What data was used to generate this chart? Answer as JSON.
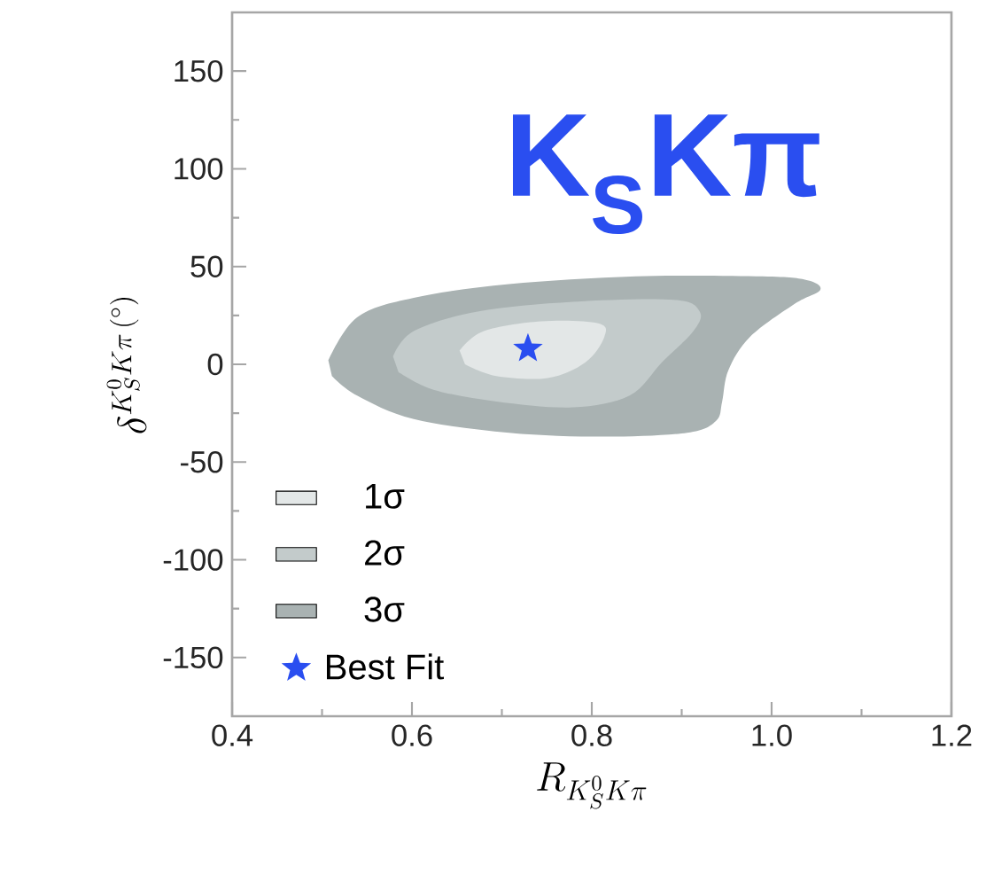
{
  "chart_data": {
    "type": "area",
    "title": "K$_{S}$Kπ",
    "xlabel": "R_{K^{0}_{S}K\\pi}",
    "ylabel": "\\delta^{K^{0}_{S}K\\pi\\,(^{\\circ})}",
    "xlim": [
      0.4,
      1.2
    ],
    "ylim": [
      -180,
      180
    ],
    "xticks": [
      0.4,
      0.6,
      0.8,
      {
        "value": 1.0,
        "label": "1.0"
      },
      1.2
    ],
    "yticks": [
      -150,
      -100,
      -50,
      0,
      50,
      100,
      150
    ],
    "legend": "bottom left",
    "series": [
      {
        "name": "1σ",
        "color": "#e3e7e7",
        "x": [
          0.653,
          0.68,
          0.744,
          0.807,
          0.814,
          0.793,
          0.751,
          0.694,
          0.659
        ],
        "values": [
          7,
          17,
          22,
          21,
          14,
          1,
          -7,
          -6,
          0
        ]
      },
      {
        "name": "2σ",
        "color": "#c3cbcb",
        "x": [
          0.579,
          0.602,
          0.673,
          0.779,
          0.891,
          0.92,
          0.913,
          0.878,
          0.842,
          0.779,
          0.694,
          0.624,
          0.585
        ],
        "values": [
          4,
          17,
          27,
          32,
          33,
          27,
          17,
          1,
          -16,
          -22,
          -19,
          -13,
          -4
        ]
      },
      {
        "name": "3σ",
        "color": "#a9b2b2",
        "x": [
          0.507,
          0.539,
          0.602,
          0.708,
          0.849,
          0.99,
          1.04,
          1.054,
          1.026,
          0.976,
          0.952,
          0.945,
          0.938,
          0.906,
          0.814,
          0.708,
          0.602,
          0.539,
          0.511
        ],
        "values": [
          2,
          24,
          34,
          41,
          45,
          45,
          43,
          38,
          31,
          14,
          -3,
          -19,
          -29,
          -35,
          -37,
          -35,
          -28,
          -16,
          -6
        ]
      },
      {
        "name": "Best Fit",
        "type": "scatter",
        "marker": "star",
        "color": "#2a4ef0",
        "x": [
          0.729
        ],
        "values": [
          8
        ]
      }
    ]
  }
}
